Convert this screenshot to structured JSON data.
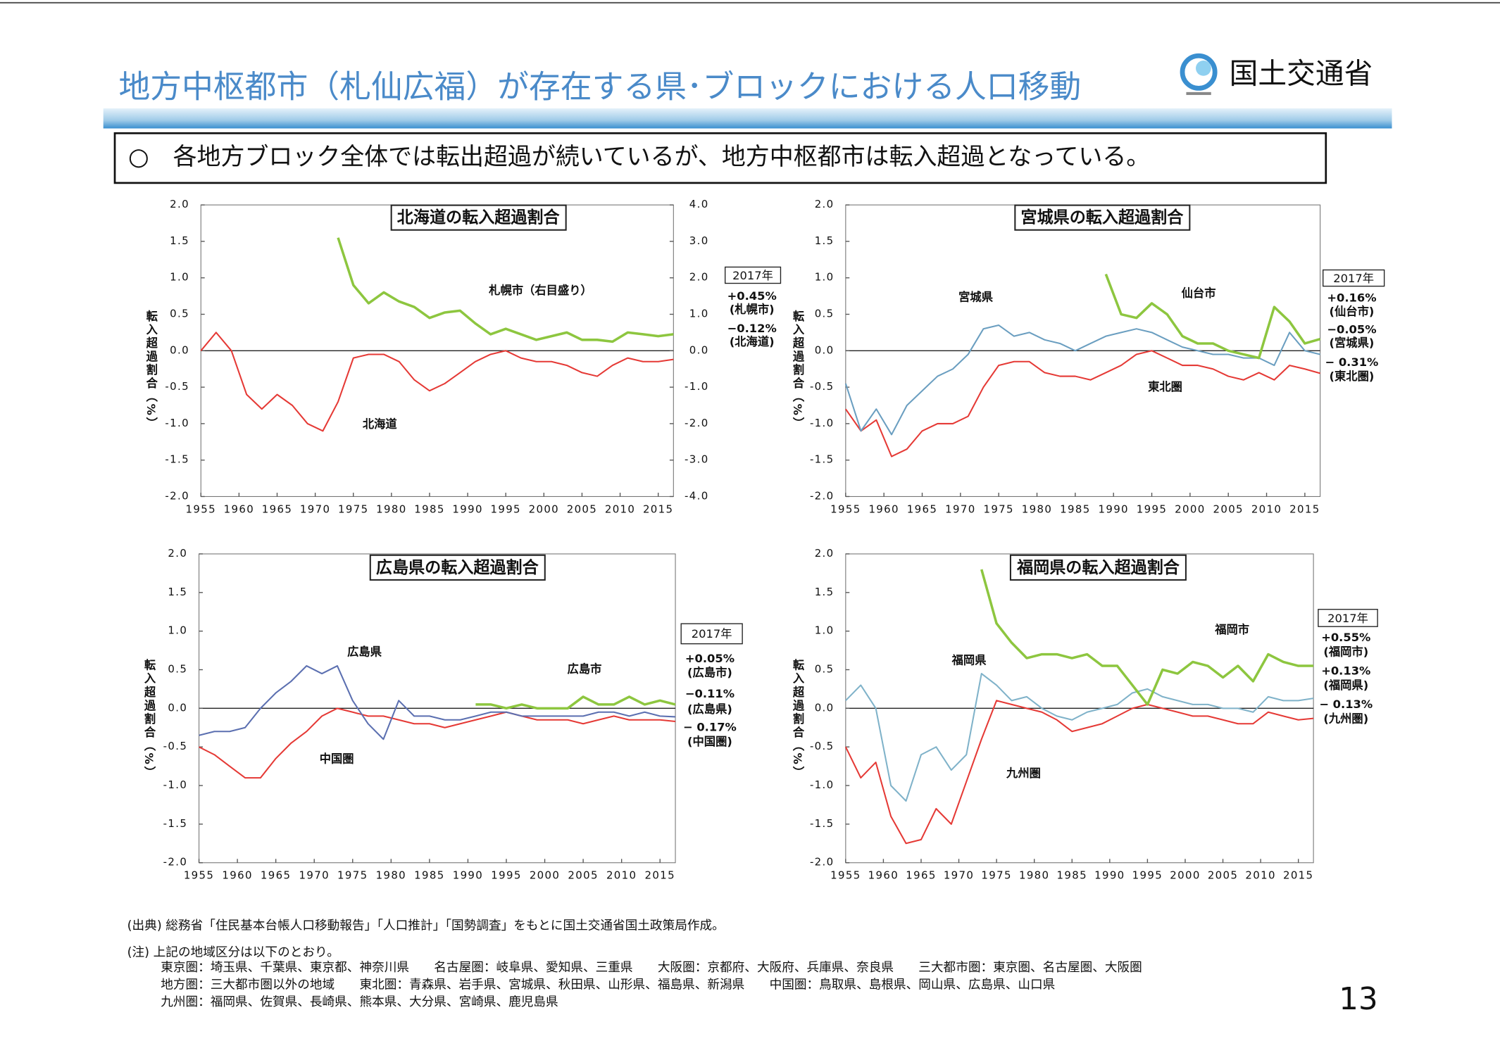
{
  "header": {
    "title": "地方中枢都市（札仙広福）が存在する県･ブロックにおける人口移動",
    "logo_text": "国土交通省"
  },
  "summary": "○　各地方ブロック全体では転出超過が続いているが、地方中枢都市は転入超過となっている。",
  "chart_data": [
    {
      "type": "line",
      "title": "北海道の転入超過割合",
      "y_label": "転入超過割合（%）",
      "x": [
        1955,
        1957,
        1959,
        1961,
        1963,
        1965,
        1967,
        1969,
        1971,
        1973,
        1975,
        1977,
        1979,
        1981,
        1983,
        1985,
        1987,
        1989,
        1991,
        1993,
        1995,
        1997,
        1999,
        2001,
        2003,
        2005,
        2007,
        2009,
        2011,
        2013,
        2015,
        2017
      ],
      "xlim": [
        1955,
        2017
      ],
      "xticks": [
        1955,
        1960,
        1965,
        1970,
        1975,
        1980,
        1985,
        1990,
        1995,
        2000,
        2005,
        2010,
        2015
      ],
      "ylim": [
        -2,
        2
      ],
      "yticks": [
        {
          "value": -2,
          "label": "-2.0"
        },
        -1.5,
        {
          "value": -1,
          "label": "-1.0"
        },
        -0.5,
        {
          "value": 0,
          "label": "0.0"
        },
        0.5,
        {
          "value": 1,
          "label": "1.0"
        },
        1.5,
        {
          "value": 2,
          "label": "2.0"
        }
      ],
      "y2lim": [
        -4,
        4
      ],
      "y2ticks": [
        {
          "value": -4,
          "label": "-4.0"
        },
        {
          "value": -3,
          "label": "-3.0"
        },
        {
          "value": -2,
          "label": "-2.0"
        },
        {
          "value": -1,
          "label": "-1.0"
        },
        {
          "value": 0,
          "label": "0.0"
        },
        {
          "value": 1,
          "label": "1.0"
        },
        {
          "value": 2,
          "label": "2.0"
        },
        {
          "value": 3,
          "label": "3.0"
        },
        {
          "value": 4,
          "label": "4.0"
        }
      ],
      "series": [
        {
          "name": "北海道",
          "color": "#e53935",
          "values": [
            0.0,
            0.25,
            0.0,
            -0.6,
            -0.8,
            -0.6,
            -0.75,
            -1.0,
            -1.1,
            -0.7,
            -0.1,
            -0.05,
            -0.05,
            -0.15,
            -0.4,
            -0.55,
            -0.45,
            -0.3,
            -0.15,
            -0.05,
            0.0,
            -0.1,
            -0.15,
            -0.15,
            -0.2,
            -0.3,
            -0.35,
            -0.2,
            -0.1,
            -0.15,
            -0.15,
            -0.12
          ]
        },
        {
          "name": "札幌市（右目盛り）",
          "color": "#8dc63f",
          "axis": "y2",
          "values": [
            null,
            null,
            null,
            null,
            null,
            null,
            null,
            null,
            null,
            3.1,
            1.8,
            1.3,
            1.6,
            1.35,
            1.2,
            0.9,
            1.05,
            1.1,
            0.75,
            0.45,
            0.6,
            0.45,
            0.3,
            0.4,
            0.5,
            0.3,
            0.3,
            0.25,
            0.5,
            0.45,
            0.4,
            0.45
          ]
        }
      ],
      "annotation_title": "2017年",
      "annotations": [
        "+0.45%",
        "(札幌市)",
        "−0.12%",
        "(北海道)"
      ]
    },
    {
      "type": "line",
      "title": "宮城県の転入超過割合",
      "y_label": "転入超過割合（%）",
      "x": [
        1955,
        1957,
        1959,
        1961,
        1963,
        1965,
        1967,
        1969,
        1971,
        1973,
        1975,
        1977,
        1979,
        1981,
        1983,
        1985,
        1987,
        1989,
        1991,
        1993,
        1995,
        1997,
        1999,
        2001,
        2003,
        2005,
        2007,
        2009,
        2011,
        2013,
        2015,
        2017
      ],
      "xlim": [
        1955,
        2017
      ],
      "xticks": [
        1955,
        1960,
        1965,
        1970,
        1975,
        1980,
        1985,
        1990,
        1995,
        2000,
        2005,
        2010,
        2015
      ],
      "ylim": [
        -2,
        2
      ],
      "yticks": [
        {
          "value": -2,
          "label": "-2.0"
        },
        -1.5,
        {
          "value": -1,
          "label": "-1.0"
        },
        -0.5,
        {
          "value": 0,
          "label": "0.0"
        },
        0.5,
        {
          "value": 1,
          "label": "1.0"
        },
        1.5,
        {
          "value": 2,
          "label": "2.0"
        }
      ],
      "series": [
        {
          "name": "東北圏",
          "color": "#e53935",
          "values": [
            -0.8,
            -1.1,
            -0.95,
            -1.45,
            -1.35,
            -1.1,
            -1.0,
            -1.0,
            -0.9,
            -0.5,
            -0.2,
            -0.15,
            -0.15,
            -0.3,
            -0.35,
            -0.35,
            -0.4,
            -0.3,
            -0.2,
            -0.05,
            0.0,
            -0.1,
            -0.2,
            -0.2,
            -0.25,
            -0.35,
            -0.4,
            -0.3,
            -0.4,
            -0.2,
            -0.25,
            -0.31
          ]
        },
        {
          "name": "宮城県",
          "color": "#6a9ec0",
          "values": [
            -0.45,
            -1.1,
            -0.8,
            -1.15,
            -0.75,
            -0.55,
            -0.35,
            -0.25,
            -0.05,
            0.3,
            0.35,
            0.2,
            0.25,
            0.15,
            0.1,
            0.0,
            0.1,
            0.2,
            0.25,
            0.3,
            0.25,
            0.15,
            0.05,
            0.0,
            -0.05,
            -0.05,
            -0.1,
            -0.1,
            -0.2,
            0.25,
            0.0,
            -0.05
          ]
        },
        {
          "name": "仙台市",
          "color": "#8dc63f",
          "values": [
            null,
            null,
            null,
            null,
            null,
            null,
            null,
            null,
            null,
            null,
            null,
            null,
            null,
            null,
            null,
            null,
            null,
            1.05,
            0.5,
            0.45,
            0.65,
            0.5,
            0.2,
            0.1,
            0.1,
            0.0,
            -0.05,
            -0.1,
            0.6,
            0.4,
            0.1,
            0.16
          ]
        }
      ],
      "annotation_title": "2017年",
      "annotations": [
        "+0.16%",
        "(仙台市)",
        "−0.05%",
        "(宮城県)",
        "− 0.31%",
        "(東北圏)"
      ]
    },
    {
      "type": "line",
      "title": "広島県の転入超過割合",
      "y_label": "転入超過割合（%）",
      "x": [
        1955,
        1957,
        1959,
        1961,
        1963,
        1965,
        1967,
        1969,
        1971,
        1973,
        1975,
        1977,
        1979,
        1981,
        1983,
        1985,
        1987,
        1989,
        1991,
        1993,
        1995,
        1997,
        1999,
        2001,
        2003,
        2005,
        2007,
        2009,
        2011,
        2013,
        2015,
        2017
      ],
      "xlim": [
        1955,
        2017
      ],
      "xticks": [
        1955,
        1960,
        1965,
        1970,
        1975,
        1980,
        1985,
        1990,
        1995,
        2000,
        2005,
        2010,
        2015
      ],
      "ylim": [
        -2,
        2
      ],
      "yticks": [
        {
          "value": -2,
          "label": "-2.0"
        },
        -1.5,
        {
          "value": -1,
          "label": "-1.0"
        },
        -0.5,
        {
          "value": 0,
          "label": "0.0"
        },
        0.5,
        {
          "value": 1,
          "label": "1.0"
        },
        1.5,
        {
          "value": 2,
          "label": "2.0"
        }
      ],
      "series": [
        {
          "name": "中国圏",
          "color": "#e53935",
          "values": [
            -0.5,
            -0.6,
            -0.75,
            -0.9,
            -0.9,
            -0.65,
            -0.45,
            -0.3,
            -0.1,
            0.0,
            -0.05,
            -0.1,
            -0.1,
            -0.15,
            -0.2,
            -0.2,
            -0.25,
            -0.2,
            -0.15,
            -0.1,
            -0.05,
            -0.1,
            -0.15,
            -0.15,
            -0.15,
            -0.2,
            -0.15,
            -0.1,
            -0.15,
            -0.15,
            -0.15,
            -0.17
          ]
        },
        {
          "name": "広島県",
          "color": "#5b6fb0",
          "values": [
            -0.35,
            -0.3,
            -0.3,
            -0.25,
            0.0,
            0.2,
            0.35,
            0.55,
            0.45,
            0.55,
            0.1,
            -0.2,
            -0.4,
            0.1,
            -0.1,
            -0.1,
            -0.15,
            -0.15,
            -0.1,
            -0.05,
            -0.05,
            -0.1,
            -0.1,
            -0.1,
            -0.1,
            -0.1,
            -0.05,
            -0.05,
            -0.1,
            -0.05,
            -0.1,
            -0.11
          ]
        },
        {
          "name": "広島市",
          "color": "#8dc63f",
          "values": [
            null,
            null,
            null,
            null,
            null,
            null,
            null,
            null,
            null,
            null,
            null,
            null,
            null,
            null,
            null,
            null,
            null,
            null,
            0.05,
            0.05,
            0.0,
            0.05,
            0.0,
            0.0,
            0.0,
            0.15,
            0.05,
            0.05,
            0.15,
            0.05,
            0.1,
            0.05
          ]
        }
      ],
      "annotation_title": "2017年",
      "annotations": [
        "+0.05%",
        "(広島市)",
        "−0.11%",
        "(広島県)",
        "− 0.17%",
        "(中国圏)"
      ]
    },
    {
      "type": "line",
      "title": "福岡県の転入超過割合",
      "y_label": "転入超過割合（%）",
      "x": [
        1955,
        1957,
        1959,
        1961,
        1963,
        1965,
        1967,
        1969,
        1971,
        1973,
        1975,
        1977,
        1979,
        1981,
        1983,
        1985,
        1987,
        1989,
        1991,
        1993,
        1995,
        1997,
        1999,
        2001,
        2003,
        2005,
        2007,
        2009,
        2011,
        2013,
        2015,
        2017
      ],
      "xlim": [
        1955,
        2017
      ],
      "xticks": [
        1955,
        1960,
        1965,
        1970,
        1975,
        1980,
        1985,
        1990,
        1995,
        2000,
        2005,
        2010,
        2015
      ],
      "ylim": [
        -2,
        2
      ],
      "yticks": [
        {
          "value": -2,
          "label": "-2.0"
        },
        -1.5,
        {
          "value": -1,
          "label": "-1.0"
        },
        -0.5,
        {
          "value": 0,
          "label": "0.0"
        },
        0.5,
        {
          "value": 1,
          "label": "1.0"
        },
        1.5,
        {
          "value": 2,
          "label": "2.0"
        }
      ],
      "series": [
        {
          "name": "九州圏",
          "color": "#e53935",
          "values": [
            -0.5,
            -0.9,
            -0.7,
            -1.4,
            -1.75,
            -1.7,
            -1.3,
            -1.5,
            -0.95,
            -0.4,
            0.1,
            0.05,
            0.0,
            -0.05,
            -0.15,
            -0.3,
            -0.25,
            -0.2,
            -0.1,
            0.0,
            0.05,
            0.0,
            -0.05,
            -0.1,
            -0.1,
            -0.15,
            -0.2,
            -0.2,
            -0.05,
            -0.1,
            -0.15,
            -0.13
          ]
        },
        {
          "name": "福岡県",
          "color": "#7fb2c9",
          "values": [
            0.1,
            0.3,
            0.0,
            -1.0,
            -1.2,
            -0.6,
            -0.5,
            -0.8,
            -0.6,
            0.45,
            0.3,
            0.1,
            0.15,
            0.0,
            -0.1,
            -0.15,
            -0.05,
            0.0,
            0.05,
            0.2,
            0.25,
            0.15,
            0.1,
            0.05,
            0.05,
            0.0,
            0.0,
            -0.05,
            0.15,
            0.1,
            0.1,
            0.13
          ]
        },
        {
          "name": "福岡市",
          "color": "#8dc63f",
          "values": [
            null,
            null,
            null,
            null,
            null,
            null,
            null,
            null,
            null,
            1.8,
            1.1,
            0.85,
            0.65,
            0.7,
            0.7,
            0.65,
            0.7,
            0.55,
            0.55,
            0.3,
            0.05,
            0.5,
            0.45,
            0.6,
            0.55,
            0.4,
            0.55,
            0.35,
            0.7,
            0.6,
            0.55,
            0.55
          ]
        }
      ],
      "annotation_title": "2017年",
      "annotations": [
        "+0.55%",
        "(福岡市)",
        "+0.13%",
        "(福岡県)",
        "− 0.13%",
        "(九州圏)"
      ]
    }
  ],
  "source": "(出典) 総務省「住民基本台帳人口移動報告」「人口推計」「国勢調査」をもとに国土交通省国土政策局作成。",
  "notes": [
    "(注) 上記の地域区分は以下のとおり。",
    "東京圏：埼玉県、千葉県、東京都、神奈川県　　名古屋圏：岐阜県、愛知県、三重県　　大阪圏：京都府、大阪府、兵庫県、奈良県　　三大都市圏：東京圏、名古屋圏、大阪圏",
    "地方圏：三大都市圏以外の地域　　東北圏：青森県、岩手県、宮城県、秋田県、山形県、福島県、新潟県　　中国圏：鳥取県、島根県、岡山県、広島県、山口県",
    "九州圏：福岡県、佐賀県、長崎県、熊本県、大分県、宮崎県、鹿児島県"
  ],
  "page_number": "13"
}
